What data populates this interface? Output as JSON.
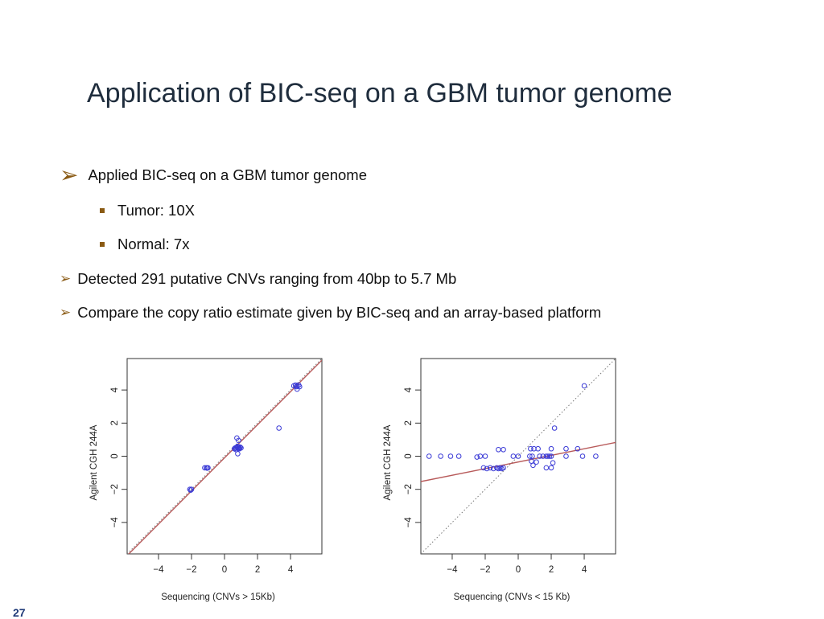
{
  "slide": {
    "title": "Application of BIC-seq on a GBM tumor genome",
    "bullets": [
      {
        "text": "Applied BIC-seq on a GBM tumor genome",
        "sub": [
          "Tumor: 10X",
          "Normal: 7x"
        ]
      },
      {
        "text": "Detected 291 putative CNVs ranging from 40bp to 5.7 Mb"
      },
      {
        "text": "Compare the copy ratio estimate given by BIC-seq and an array-based platform"
      }
    ],
    "page_number": "27"
  },
  "colors": {
    "title": "#1f2d3d",
    "bullet_marker": "#8a5a13",
    "points": "#3a3ad6",
    "fit_line": "#b85b5b",
    "ref_line": "#777777",
    "page_number": "#1f3a78"
  },
  "chart_data": [
    {
      "type": "scatter",
      "xlabel": "Sequencing (CNVs > 15Kb)",
      "ylabel": "Agilent CGH 244A",
      "xlim": [
        -5.9,
        5.9
      ],
      "ylim": [
        -5.9,
        5.9
      ],
      "xticks": [
        -4,
        -2,
        0,
        2,
        4
      ],
      "yticks": [
        -4,
        -2,
        0,
        2,
        4
      ],
      "tick_labels": [
        "−4",
        "−2",
        "0",
        "2",
        "4"
      ],
      "grid": false,
      "ref_line": {
        "slope": 1,
        "intercept": 0,
        "style": "dotted"
      },
      "fit_line": {
        "slope": 1.0,
        "intercept": -0.1
      },
      "points": [
        [
          -2.1,
          -2.0
        ],
        [
          -2.05,
          -2.05
        ],
        [
          -2.0,
          -2.0
        ],
        [
          -1.2,
          -0.7
        ],
        [
          -1.1,
          -0.7
        ],
        [
          -1.05,
          -0.72
        ],
        [
          -1.0,
          -0.7
        ],
        [
          0.6,
          0.45
        ],
        [
          0.65,
          0.5
        ],
        [
          0.7,
          0.4
        ],
        [
          0.75,
          0.55
        ],
        [
          0.8,
          0.5
        ],
        [
          0.85,
          0.45
        ],
        [
          0.9,
          0.5
        ],
        [
          0.95,
          0.55
        ],
        [
          1.0,
          0.5
        ],
        [
          0.7,
          0.5
        ],
        [
          0.8,
          0.6
        ],
        [
          0.9,
          0.45
        ],
        [
          0.75,
          1.1
        ],
        [
          0.85,
          0.95
        ],
        [
          0.8,
          0.15
        ],
        [
          3.3,
          1.7
        ],
        [
          4.2,
          4.25
        ],
        [
          4.3,
          4.3
        ],
        [
          4.35,
          4.2
        ],
        [
          4.4,
          4.25
        ],
        [
          4.5,
          4.3
        ],
        [
          4.55,
          4.2
        ],
        [
          4.4,
          4.05
        ]
      ]
    },
    {
      "type": "scatter",
      "xlabel": "Sequencing (CNVs < 15 Kb)",
      "ylabel": "Agilent CGH 244A",
      "xlim": [
        -5.9,
        5.9
      ],
      "ylim": [
        -5.9,
        5.9
      ],
      "xticks": [
        -4,
        -2,
        0,
        2,
        4
      ],
      "yticks": [
        -4,
        -2,
        0,
        2,
        4
      ],
      "tick_labels": [
        "−4",
        "−2",
        "0",
        "2",
        "4"
      ],
      "grid": false,
      "ref_line": {
        "slope": 1,
        "intercept": 0,
        "style": "dotted"
      },
      "fit_line": {
        "slope": 0.2,
        "intercept": -0.35
      },
      "points": [
        [
          -5.4,
          0.0
        ],
        [
          -4.7,
          0.0
        ],
        [
          -4.1,
          0.0
        ],
        [
          -3.6,
          0.0
        ],
        [
          -2.5,
          -0.05
        ],
        [
          -2.3,
          0.0
        ],
        [
          -2.0,
          0.0
        ],
        [
          -2.1,
          -0.7
        ],
        [
          -1.9,
          -0.75
        ],
        [
          -1.7,
          -0.7
        ],
        [
          -1.5,
          -0.75
        ],
        [
          -1.3,
          -0.7
        ],
        [
          -1.2,
          -0.75
        ],
        [
          -1.1,
          -0.7
        ],
        [
          -1.0,
          -0.75
        ],
        [
          -0.9,
          -0.7
        ],
        [
          -1.2,
          0.4
        ],
        [
          -0.9,
          0.4
        ],
        [
          -0.3,
          0.0
        ],
        [
          0.0,
          0.0
        ],
        [
          0.7,
          0.0
        ],
        [
          0.75,
          0.45
        ],
        [
          0.8,
          -0.3
        ],
        [
          0.85,
          0.0
        ],
        [
          0.9,
          -0.55
        ],
        [
          0.95,
          0.45
        ],
        [
          1.1,
          -0.35
        ],
        [
          1.2,
          0.45
        ],
        [
          1.3,
          0.0
        ],
        [
          1.5,
          0.0
        ],
        [
          1.7,
          0.0
        ],
        [
          1.8,
          0.0
        ],
        [
          1.9,
          0.0
        ],
        [
          2.0,
          0.0
        ],
        [
          1.7,
          -0.7
        ],
        [
          2.0,
          -0.7
        ],
        [
          2.1,
          -0.4
        ],
        [
          2.0,
          0.45
        ],
        [
          2.2,
          1.7
        ],
        [
          2.9,
          0.45
        ],
        [
          2.9,
          0.0
        ],
        [
          3.6,
          0.45
        ],
        [
          3.9,
          0.0
        ],
        [
          4.0,
          4.25
        ],
        [
          4.7,
          0.0
        ]
      ]
    }
  ]
}
